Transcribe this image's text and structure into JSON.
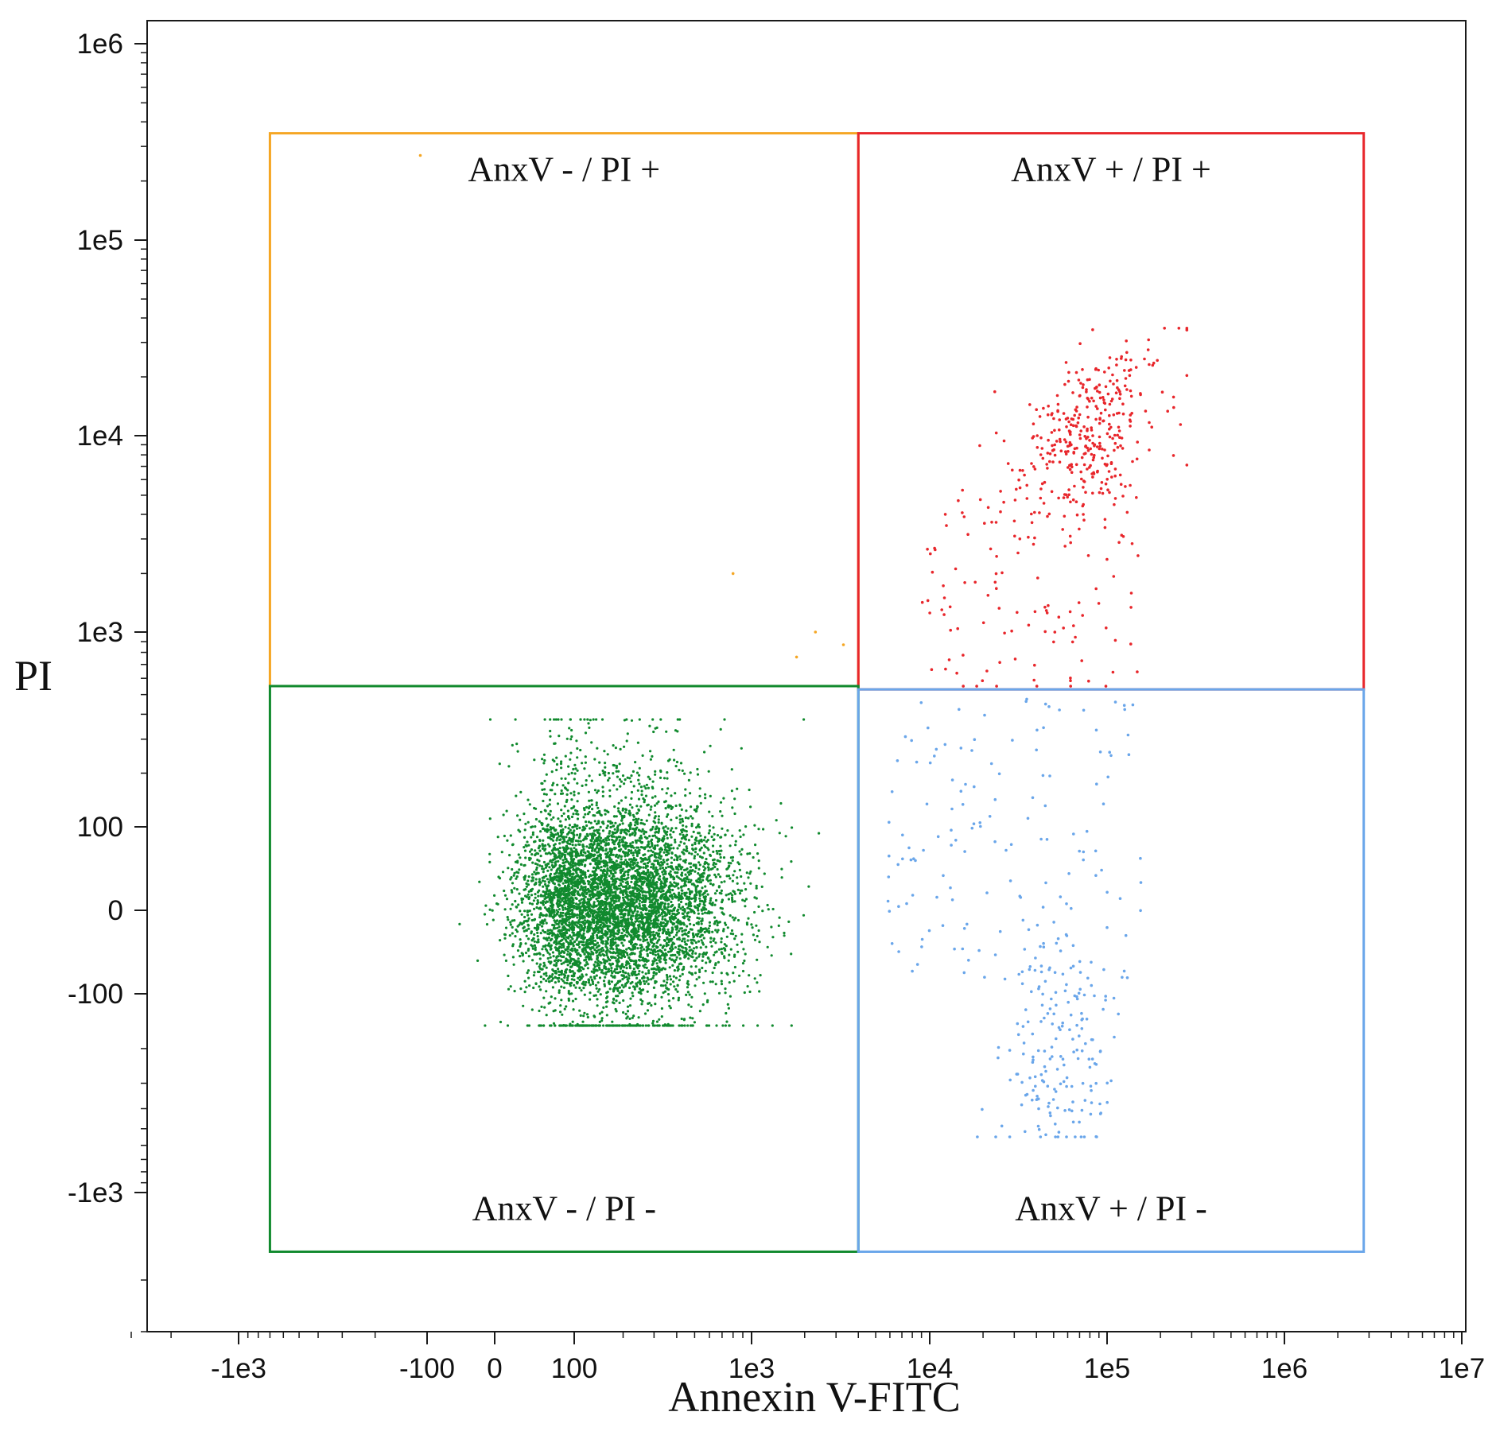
{
  "chart_data": {
    "type": "scatter",
    "xlabel": "Annexin V-FITC",
    "ylabel": "PI",
    "x_scale": "biexponential",
    "y_scale": "biexponential",
    "xlim": [
      -3000,
      10000000
    ],
    "ylim": [
      -3000,
      1000000
    ],
    "x_ticks": [
      {
        "value": -1000,
        "label": "-1e3"
      },
      {
        "value": -100,
        "label": "-100"
      },
      {
        "value": 0,
        "label": "0"
      },
      {
        "value": 100,
        "label": "100"
      },
      {
        "value": 1000,
        "label": "1e3"
      },
      {
        "value": 10000,
        "label": "1e4"
      },
      {
        "value": 100000,
        "label": "1e5"
      },
      {
        "value": 1000000,
        "label": "1e6"
      },
      {
        "value": 10000000,
        "label": "1e7"
      }
    ],
    "y_ticks": [
      {
        "value": 1000000,
        "label": "1e6"
      },
      {
        "value": 100000,
        "label": "1e5"
      },
      {
        "value": 10000,
        "label": "1e4"
      },
      {
        "value": 1000,
        "label": "1e3"
      },
      {
        "value": 100,
        "label": "100"
      },
      {
        "value": 0,
        "label": "0"
      },
      {
        "value": -100,
        "label": "-100"
      },
      {
        "value": -1000,
        "label": "-1e3"
      }
    ],
    "gates": [
      {
        "label": "AnxV - / PI +",
        "color": "#f5a623",
        "x_range": [
          -700,
          4000
        ],
        "y_range": [
          550,
          350000
        ]
      },
      {
        "label": "AnxV + / PI +",
        "color": "#e8262b",
        "x_range": [
          4000,
          2800000
        ],
        "y_range": [
          530,
          350000
        ]
      },
      {
        "label": "AnxV - / PI -",
        "color": "#118a2e",
        "x_range": [
          -700,
          4000
        ],
        "y_range": [
          -1600,
          550
        ]
      },
      {
        "label": "AnxV + / PI -",
        "color": "#6aa6ea",
        "x_range": [
          4000,
          2800000
        ],
        "y_range": [
          -1600,
          530
        ]
      }
    ],
    "populations": [
      {
        "gate": "AnxV - / PI -",
        "color": "#118a2e",
        "center": [
          180,
          5
        ],
        "approx_points": 6000
      },
      {
        "gate": "AnxV + / PI +",
        "color": "#e8262b",
        "center": [
          80000,
          11000
        ],
        "approx_points": 470
      },
      {
        "gate": "AnxV + / PI -",
        "color": "#6aa6ea",
        "center": [
          50000,
          -180
        ],
        "approx_points": 330
      },
      {
        "gate": "AnxV - / PI +",
        "color": "#f5a623",
        "center": [
          2000,
          1000
        ],
        "approx_points": 5
      }
    ],
    "grid": false,
    "legend": "none"
  }
}
